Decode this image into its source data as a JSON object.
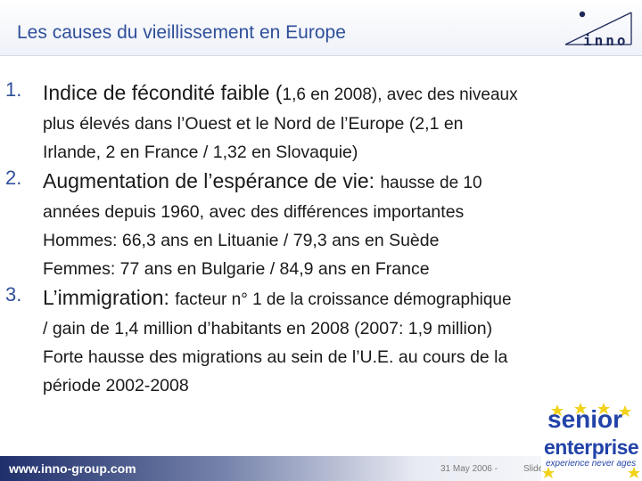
{
  "header": {
    "title": "Les causes du vieillissement en Europe",
    "logo_text": "inno"
  },
  "items": [
    {
      "number": "1.",
      "main": {
        "big": "Indice de fécondité faible (",
        "small": "1,6 en 2008), avec des niveaux"
      },
      "lines": [
        "plus élevés dans l’Ouest et le Nord de l’Europe (2,1 en",
        "Irlande, 2 en France / 1,32 en Slovaquie)"
      ]
    },
    {
      "number": "2.",
      "main": {
        "big": "Augmentation de l’espérance de vie: ",
        "small": "hausse de 10"
      },
      "lines": [
        "années depuis 1960, avec des différences importantes",
        "Hommes: 66,3 ans en Lituanie / 79,3 ans en Suède",
        "Femmes: 77 ans en Bulgarie / 84,9 ans en France"
      ]
    },
    {
      "number": "3.",
      "main": {
        "big": "L’immigration: ",
        "small": "facteur n° 1 de la croissance démographique"
      },
      "lines": [
        "/ gain de 1,4 million d’habitants en 2008 (2007: 1,9 million)",
        "Forte hausse des migrations au sein de l’U.E. au cours de la",
        "période 2002-2008"
      ]
    }
  ],
  "footer": {
    "url": "www.inno-group.com",
    "date": "31 May 2006 -",
    "slide": "Slide"
  },
  "badge": {
    "line1": "senior",
    "line2": "enterprise",
    "tagline": "experience never ages"
  },
  "colors": {
    "title": "#2f4f9a",
    "badge_blue": "#2243a8",
    "badge_star": "#f2d21a"
  }
}
